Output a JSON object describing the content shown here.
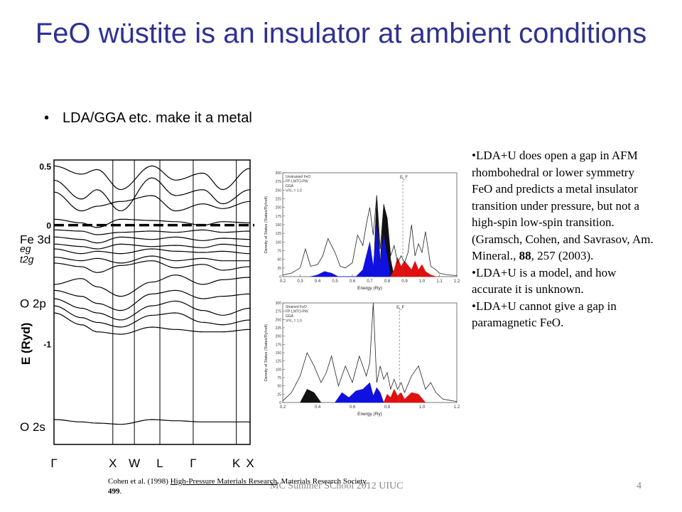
{
  "slide": {
    "title": "FeO wüstite is an insulator at ambient conditions",
    "bullet_marker": "•",
    "bullet": "LDA/GGA etc. make it a metal",
    "notes": [
      {
        "text": "•LDA+U does open a gap in AFM rhombohedral or lower symmetry FeO and predicts a metal insulator transition under pressure, but not a high-spin low-spin transition. (Gramsch, Cohen, and Savrasov, Am. Mineral., ",
        "bold": "88",
        "tail": ", 257 (2003)."
      },
      {
        "text": "•LDA+U is a model, and how accurate it is unknown.",
        "bold": "",
        "tail": ""
      },
      {
        "text": "•LDA+U cannot give a gap in paramagnetic FeO.",
        "bold": "",
        "tail": ""
      }
    ],
    "citation": {
      "pre": "Cohen et al. (1998) ",
      "underlined": "High-Pressure  Materials Research",
      "mid": ". Materials Research Society. ",
      "bold": "499",
      "post": "."
    },
    "footer": "MC Summer SChool 2012 UIUC",
    "page_number": "4"
  },
  "chart_data": [
    {
      "type": "line",
      "name_hint": "band structure",
      "ylabel": "E (Ryd)",
      "y_ticks": [
        "0.5",
        "0",
        "-1"
      ],
      "y_tick_values": [
        0.5,
        0,
        -1
      ],
      "ylim": [
        -1.85,
        0.55
      ],
      "x_ticks": [
        "Γ",
        "X",
        "W",
        "L",
        "Γ",
        "K",
        "X"
      ],
      "band_labels": [
        {
          "text": "Fe 3d",
          "y": -0.12,
          "italic": false
        },
        {
          "text": "eg",
          "y": -0.19,
          "italic": true
        },
        {
          "text": "t2g",
          "y": -0.28,
          "italic": true
        },
        {
          "text": "O 2p",
          "y": -0.66,
          "italic": false
        },
        {
          "text": "O 2s",
          "y": -1.7,
          "italic": false
        }
      ],
      "fermi_level": 0,
      "dashed_fermi_line": true,
      "bands": [
        {
          "k": [
            0,
            0.14,
            0.22,
            0.34,
            0.5,
            0.62,
            0.76,
            0.86,
            1
          ],
          "e": [
            0.5,
            0.43,
            0.47,
            0.3,
            0.5,
            0.38,
            0.44,
            0.3,
            0.48
          ]
        },
        {
          "k": [
            0,
            0.14,
            0.22,
            0.34,
            0.5,
            0.62,
            0.76,
            0.86,
            1
          ],
          "e": [
            0.38,
            0.22,
            0.3,
            0.12,
            0.4,
            0.25,
            0.3,
            0.18,
            0.3
          ]
        },
        {
          "k": [
            0,
            0.14,
            0.22,
            0.34,
            0.5,
            0.62,
            0.76,
            0.86,
            1
          ],
          "e": [
            0.28,
            0.12,
            0.16,
            0.2,
            0.25,
            0.12,
            0.18,
            0.14,
            0.2
          ]
        },
        {
          "k": [
            0,
            0.14,
            0.22,
            0.34,
            0.5,
            0.62,
            0.76,
            0.86,
            1
          ],
          "e": [
            0.05,
            0.02,
            -0.02,
            0.05,
            0.04,
            0.03,
            0.0,
            0.03,
            0.02
          ]
        },
        {
          "k": [
            0,
            0.14,
            0.22,
            0.34,
            0.5,
            0.62,
            0.76,
            0.86,
            1
          ],
          "e": [
            -0.04,
            -0.05,
            -0.08,
            -0.06,
            -0.05,
            -0.06,
            -0.04,
            -0.06,
            -0.05
          ]
        },
        {
          "k": [
            0,
            0.14,
            0.22,
            0.34,
            0.5,
            0.62,
            0.76,
            0.86,
            1
          ],
          "e": [
            -0.1,
            -0.12,
            -0.15,
            -0.1,
            -0.12,
            -0.1,
            -0.13,
            -0.11,
            -0.12
          ]
        },
        {
          "k": [
            0,
            0.14,
            0.22,
            0.34,
            0.5,
            0.62,
            0.76,
            0.86,
            1
          ],
          "e": [
            -0.16,
            -0.18,
            -0.2,
            -0.16,
            -0.18,
            -0.17,
            -0.19,
            -0.16,
            -0.18
          ]
        },
        {
          "k": [
            0,
            0.14,
            0.22,
            0.34,
            0.5,
            0.62,
            0.76,
            0.86,
            1
          ],
          "e": [
            -0.2,
            -0.24,
            -0.22,
            -0.24,
            -0.2,
            -0.22,
            -0.23,
            -0.22,
            -0.24
          ]
        },
        {
          "k": [
            0,
            0.14,
            0.22,
            0.34,
            0.5,
            0.62,
            0.76,
            0.86,
            1
          ],
          "e": [
            -0.27,
            -0.3,
            -0.28,
            -0.32,
            -0.26,
            -0.3,
            -0.28,
            -0.3,
            -0.3
          ]
        },
        {
          "k": [
            0,
            0.14,
            0.22,
            0.34,
            0.5,
            0.62,
            0.76,
            0.86,
            1
          ],
          "e": [
            -0.32,
            -0.35,
            -0.4,
            -0.34,
            -0.3,
            -0.36,
            -0.33,
            -0.38,
            -0.35
          ]
        },
        {
          "k": [
            0,
            0.14,
            0.22,
            0.34,
            0.5,
            0.62,
            0.76,
            0.86,
            1
          ],
          "e": [
            -0.5,
            -0.45,
            -0.52,
            -0.6,
            -0.48,
            -0.42,
            -0.5,
            -0.46,
            -0.44
          ]
        },
        {
          "k": [
            0,
            0.14,
            0.22,
            0.34,
            0.5,
            0.62,
            0.76,
            0.86,
            1
          ],
          "e": [
            -0.55,
            -0.6,
            -0.66,
            -0.72,
            -0.58,
            -0.55,
            -0.62,
            -0.6,
            -0.58
          ]
        },
        {
          "k": [
            0,
            0.14,
            0.22,
            0.34,
            0.5,
            0.62,
            0.76,
            0.86,
            1
          ],
          "e": [
            -0.62,
            -0.7,
            -0.74,
            -0.8,
            -0.68,
            -0.64,
            -0.72,
            -0.76,
            -0.7
          ]
        },
        {
          "k": [
            0,
            0.14,
            0.22,
            0.34,
            0.5,
            0.62,
            0.76,
            0.86,
            1
          ],
          "e": [
            -0.68,
            -0.78,
            -0.82,
            -0.86,
            -0.76,
            -0.74,
            -0.82,
            -0.84,
            -0.8
          ]
        },
        {
          "k": [
            0,
            0.14,
            0.22,
            0.34,
            0.5,
            0.62,
            0.76,
            0.86,
            1
          ],
          "e": [
            -0.74,
            -0.84,
            -0.9,
            -0.92,
            -0.86,
            -0.88,
            -0.9,
            -0.9,
            -0.88
          ]
        },
        {
          "k": [
            0,
            0.14,
            0.22,
            0.34,
            0.5,
            0.62,
            0.76,
            0.86,
            1
          ],
          "e": [
            -1.64,
            -1.66,
            -1.67,
            -1.68,
            -1.64,
            -1.65,
            -1.66,
            -1.66,
            -1.66
          ]
        }
      ]
    },
    {
      "type": "area",
      "name_hint": "DOS unstrained",
      "legend": [
        "Unstrained FeO",
        "FP-LMTO-PW",
        "GGA",
        "V/V₀ = 1.0"
      ],
      "xlabel": "Energy (Ry)",
      "ylabel": "Density of States (States/Ry/cell)",
      "x_ticks": [
        "0.2",
        "0.3",
        "0.4",
        "0.5",
        "0.6",
        "0.7",
        "0.8",
        "0.9",
        "1.0",
        "1.1",
        "1.2"
      ],
      "y_ticks": [
        "0",
        "25",
        "50",
        "75",
        "100",
        "125",
        "150",
        "175",
        "200",
        "225",
        "250",
        "275",
        "300"
      ],
      "xlim": [
        0.2,
        1.2
      ],
      "ylim": [
        0,
        300
      ],
      "fermi_label": "E_F",
      "fermi_x": 0.89,
      "total_x": [
        0.2,
        0.25,
        0.3,
        0.33,
        0.36,
        0.4,
        0.43,
        0.46,
        0.5,
        0.53,
        0.56,
        0.6,
        0.63,
        0.66,
        0.68,
        0.7,
        0.72,
        0.74,
        0.76,
        0.78,
        0.8,
        0.82,
        0.84,
        0.86,
        0.88,
        0.9,
        0.92,
        0.94,
        0.96,
        0.98,
        1.0,
        1.02,
        1.05,
        1.08,
        1.1,
        1.12,
        1.15,
        1.2
      ],
      "total_y": [
        5,
        10,
        25,
        80,
        30,
        35,
        60,
        110,
        70,
        30,
        25,
        40,
        120,
        90,
        150,
        200,
        120,
        235,
        80,
        205,
        170,
        60,
        90,
        40,
        60,
        40,
        70,
        150,
        60,
        95,
        70,
        130,
        30,
        20,
        10,
        8,
        5,
        3
      ],
      "blue_x": [
        0.36,
        0.4,
        0.44,
        0.48,
        0.52,
        0.62,
        0.66,
        0.7,
        0.72,
        0.74,
        0.76,
        0.78,
        0.8,
        0.82
      ],
      "blue_y": [
        0,
        5,
        15,
        10,
        0,
        0,
        20,
        100,
        30,
        150,
        40,
        120,
        60,
        0
      ],
      "red_x": [
        0.82,
        0.84,
        0.86,
        0.88,
        0.9,
        0.94,
        0.96,
        0.98,
        1.0,
        1.02,
        1.05,
        1.08
      ],
      "red_y": [
        0,
        20,
        55,
        30,
        45,
        20,
        45,
        20,
        35,
        15,
        5,
        0
      ],
      "black_fill_x": [
        0.72,
        0.74,
        0.76,
        0.78,
        0.8,
        0.82,
        0.84
      ],
      "black_fill_y": [
        0,
        235,
        40,
        210,
        170,
        50,
        0
      ]
    },
    {
      "type": "area",
      "name_hint": "DOS strained",
      "legend": [
        "Strained FeO",
        "FP-LMTO-PW",
        "GGA",
        "V/V₀ = 1.0"
      ],
      "xlabel": "Energy (Ry)",
      "ylabel": "Density of States (States/Ry/cell)",
      "x_ticks": [
        "0.2",
        "0.4",
        "0.6",
        "0.8",
        "1.0",
        "1.2"
      ],
      "y_ticks": [
        "0",
        "25",
        "50",
        "75",
        "100",
        "125",
        "150",
        "175",
        "200",
        "225",
        "250",
        "275",
        "300"
      ],
      "xlim": [
        0.2,
        1.2
      ],
      "ylim": [
        0,
        300
      ],
      "fermi_label": "E_F",
      "fermi_x": 0.87,
      "total_x": [
        0.2,
        0.25,
        0.3,
        0.34,
        0.38,
        0.42,
        0.45,
        0.48,
        0.52,
        0.56,
        0.6,
        0.64,
        0.68,
        0.7,
        0.72,
        0.74,
        0.76,
        0.78,
        0.8,
        0.82,
        0.84,
        0.86,
        0.88,
        0.9,
        0.94,
        0.98,
        1.02,
        1.05,
        1.08,
        1.12,
        1.2
      ],
      "total_y": [
        5,
        30,
        80,
        150,
        110,
        60,
        90,
        140,
        50,
        110,
        60,
        140,
        80,
        120,
        300,
        60,
        110,
        70,
        90,
        40,
        70,
        40,
        60,
        30,
        80,
        110,
        40,
        60,
        30,
        10,
        3
      ],
      "blue_x": [
        0.5,
        0.54,
        0.58,
        0.62,
        0.66,
        0.7,
        0.72,
        0.74,
        0.76,
        0.78
      ],
      "blue_y": [
        0,
        30,
        15,
        35,
        40,
        60,
        20,
        45,
        30,
        0
      ],
      "red_x": [
        0.78,
        0.8,
        0.82,
        0.84,
        0.86,
        0.88,
        0.9,
        0.94,
        0.98,
        1.02
      ],
      "red_y": [
        0,
        25,
        15,
        40,
        20,
        30,
        10,
        30,
        25,
        0
      ],
      "black_fill_x": [
        0.3,
        0.34,
        0.38,
        0.42
      ],
      "black_fill_y": [
        0,
        40,
        30,
        0
      ]
    }
  ]
}
